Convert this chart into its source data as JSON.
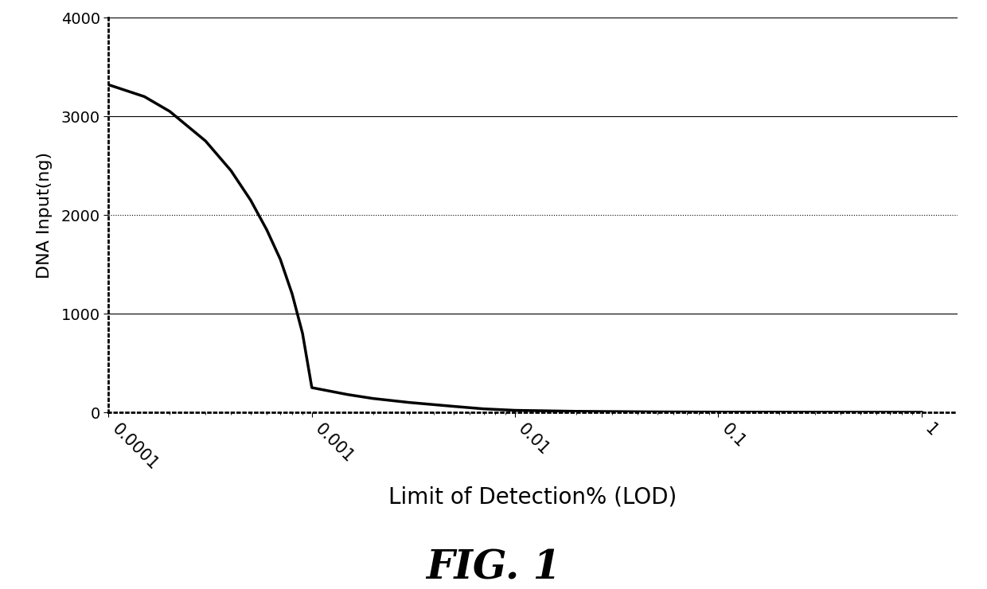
{
  "x_values": [
    0.0001,
    0.00015,
    0.0002,
    0.0003,
    0.0004,
    0.0005,
    0.0006,
    0.0007,
    0.0008,
    0.0009,
    0.001,
    0.0015,
    0.002,
    0.003,
    0.005,
    0.007,
    0.01,
    0.02,
    0.05,
    0.1,
    0.3,
    1.0
  ],
  "y_values": [
    3320,
    3200,
    3050,
    2750,
    2450,
    2150,
    1850,
    1550,
    1200,
    800,
    250,
    180,
    140,
    100,
    60,
    35,
    20,
    10,
    4,
    2,
    0.8,
    0.3
  ],
  "xlim_left": 0.0001,
  "xlim_right": 1.5,
  "ylim": [
    0,
    4000
  ],
  "yticks": [
    0,
    1000,
    2000,
    3000,
    4000
  ],
  "xtick_labels": [
    "0.0001",
    "0.001",
    "0.01",
    "0.1",
    "1"
  ],
  "xtick_values": [
    0.0001,
    0.001,
    0.01,
    0.1,
    1
  ],
  "xlabel": "Limit of Detection% (LOD)",
  "ylabel": "DNA Input(ng)",
  "figure_label": "FIG. 1",
  "line_color": "#000000",
  "bg_color": "#ffffff",
  "plot_bg_color": "#ffffff",
  "grid_color_solid": "#000000",
  "grid_color_dotted": "#000000",
  "line_width": 2.5,
  "xlabel_fontsize": 20,
  "ylabel_fontsize": 16,
  "ytick_fontsize": 14,
  "xtick_fontsize": 15,
  "fig_label_fontsize": 36
}
